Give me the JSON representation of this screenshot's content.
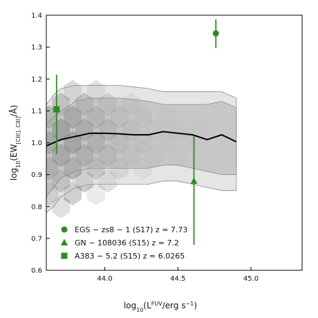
{
  "chart_data": {
    "type": "line",
    "xlabel": "log10(L^FUV/erg s^-1)",
    "ylabel": "log10(EW_[CIII], CIII]/Å)",
    "xlim": [
      43.6,
      45.35
    ],
    "ylim": [
      0.6,
      1.4
    ],
    "x_ticks": [
      44.0,
      44.5,
      45.0
    ],
    "y_ticks": [
      0.6,
      0.7,
      0.8,
      0.9,
      1.0,
      1.1,
      1.2,
      1.3,
      1.4
    ],
    "grid": false,
    "legend_position": "bottom-left",
    "median": {
      "x": [
        43.6,
        43.65,
        43.7,
        43.8,
        43.9,
        44.0,
        44.1,
        44.2,
        44.3,
        44.4,
        44.5,
        44.6,
        44.7,
        44.8,
        44.9
      ],
      "y": [
        0.99,
        1.0,
        1.01,
        1.02,
        1.03,
        1.03,
        1.028,
        1.025,
        1.025,
        1.035,
        1.03,
        1.025,
        1.01,
        1.025,
        1.003
      ]
    },
    "inner_band": {
      "x": [
        43.6,
        43.65,
        43.7,
        43.8,
        43.9,
        44.0,
        44.1,
        44.2,
        44.3,
        44.4,
        44.5,
        44.6,
        44.7,
        44.8,
        44.9
      ],
      "upper": [
        1.06,
        1.08,
        1.1,
        1.13,
        1.14,
        1.14,
        1.14,
        1.135,
        1.13,
        1.12,
        1.12,
        1.12,
        1.12,
        1.13,
        1.11
      ],
      "lower": [
        0.83,
        0.86,
        0.89,
        0.91,
        0.92,
        0.92,
        0.92,
        0.92,
        0.92,
        0.93,
        0.93,
        0.92,
        0.91,
        0.9,
        0.9
      ]
    },
    "outer_band": {
      "x": [
        43.6,
        43.65,
        43.7,
        43.8,
        43.9,
        44.0,
        44.1,
        44.2,
        44.3,
        44.4,
        44.5,
        44.6,
        44.7,
        44.8,
        44.9
      ],
      "upper": [
        1.12,
        1.15,
        1.17,
        1.18,
        1.18,
        1.18,
        1.18,
        1.175,
        1.17,
        1.16,
        1.16,
        1.16,
        1.16,
        1.16,
        1.14
      ],
      "lower": [
        0.78,
        0.8,
        0.83,
        0.86,
        0.87,
        0.87,
        0.87,
        0.87,
        0.87,
        0.88,
        0.88,
        0.87,
        0.86,
        0.85,
        0.85
      ]
    },
    "density": [
      [
        43.62,
        1.08,
        0.42
      ],
      [
        43.62,
        1.0,
        0.55
      ],
      [
        43.62,
        0.92,
        0.4
      ],
      [
        43.62,
        0.84,
        0.2
      ],
      [
        43.7,
        1.12,
        0.3
      ],
      [
        43.7,
        1.04,
        0.62
      ],
      [
        43.7,
        0.96,
        0.55
      ],
      [
        43.7,
        0.88,
        0.3
      ],
      [
        43.7,
        0.8,
        0.12
      ],
      [
        43.78,
        1.16,
        0.15
      ],
      [
        43.78,
        1.08,
        0.5
      ],
      [
        43.78,
        1.0,
        0.6
      ],
      [
        43.78,
        0.92,
        0.42
      ],
      [
        43.78,
        0.84,
        0.18
      ],
      [
        43.86,
        1.12,
        0.3
      ],
      [
        43.86,
        1.04,
        0.48
      ],
      [
        43.86,
        0.96,
        0.42
      ],
      [
        43.86,
        0.88,
        0.2
      ],
      [
        43.94,
        1.16,
        0.12
      ],
      [
        43.94,
        1.08,
        0.32
      ],
      [
        43.94,
        1.0,
        0.38
      ],
      [
        43.94,
        0.92,
        0.25
      ],
      [
        43.94,
        0.84,
        0.08
      ],
      [
        44.02,
        1.12,
        0.2
      ],
      [
        44.02,
        1.04,
        0.3
      ],
      [
        44.02,
        0.96,
        0.26
      ],
      [
        44.02,
        0.88,
        0.12
      ],
      [
        44.1,
        1.08,
        0.18
      ],
      [
        44.1,
        1.0,
        0.22
      ],
      [
        44.1,
        0.92,
        0.14
      ],
      [
        44.18,
        1.12,
        0.1
      ],
      [
        44.18,
        1.04,
        0.16
      ],
      [
        44.18,
        0.96,
        0.13
      ],
      [
        44.26,
        1.08,
        0.1
      ],
      [
        44.26,
        1.0,
        0.12
      ],
      [
        44.26,
        0.92,
        0.08
      ],
      [
        44.34,
        1.04,
        0.08
      ],
      [
        44.34,
        0.96,
        0.07
      ],
      [
        44.42,
        1.08,
        0.05
      ],
      [
        44.42,
        1.0,
        0.06
      ],
      [
        44.5,
        1.04,
        0.05
      ],
      [
        44.5,
        0.96,
        0.05
      ],
      [
        44.58,
        1.0,
        0.04
      ],
      [
        44.66,
        1.04,
        0.03
      ]
    ],
    "points": [
      {
        "name": "EGS − zs8 − 1 (S17) z = 7.73",
        "marker": "circle",
        "x": 44.76,
        "y": 1.343,
        "yerr_low": 1.297,
        "yerr_high": 1.387
      },
      {
        "name": "GN − 108036 (S15) z = 7.2",
        "marker": "triangle",
        "x": 44.61,
        "y": 0.88,
        "yerr_low": 0.68,
        "yerr_high": 1.02
      },
      {
        "name": "A383 − 5.2 (S15) z = 6.0265",
        "marker": "square",
        "x": 43.67,
        "y": 1.105,
        "yerr_low": 0.965,
        "yerr_high": 1.213
      }
    ],
    "colors": {
      "points": "#2e8b23",
      "median": "#000000",
      "band_inner": "#aaaaaa",
      "band_outer": "#cfcfcf",
      "density": "#000000"
    }
  }
}
